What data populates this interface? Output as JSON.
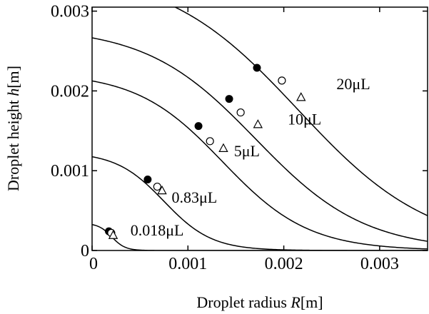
{
  "chart_data": {
    "type": "line",
    "title": "",
    "xlabel": "Droplet radius R[m]",
    "xlabel_text": "Droplet radius ",
    "xlabel_var": "R",
    "xlabel_unit": "[m]",
    "ylabel": "Droplet height h[m]",
    "ylabel_text": "Droplet height ",
    "ylabel_var": "h",
    "ylabel_unit": "[m]",
    "xlim": [
      0,
      0.0035
    ],
    "ylim": [
      0,
      0.00305
    ],
    "xticks": [
      0,
      0.001,
      0.002,
      0.003
    ],
    "xtick_labels": [
      "0",
      "0.001",
      "0.002",
      "0.003"
    ],
    "yticks": [
      0,
      0.001,
      0.002,
      0.003
    ],
    "ytick_labels": [
      "0",
      "0.001",
      "0.002",
      "0.003"
    ],
    "grid": false,
    "legend": "none",
    "curves": [
      {
        "label": "20μL",
        "h0": 0.003375,
        "x0": 0.00215,
        "s": 0.00069,
        "label_x": 0.00255,
        "label_y": 0.00202
      },
      {
        "label": "10μL",
        "h0": 0.002665,
        "x0": 0.001705,
        "s": 0.00057,
        "label_x": 0.00204,
        "label_y": 0.00158
      },
      {
        "label": "5μL",
        "h0": 0.002125,
        "x0": 0.00136,
        "s": 0.00045,
        "label_x": 0.00148,
        "label_y": 0.00118
      },
      {
        "label": "0.83μL",
        "h0": 0.001175,
        "x0": 0.00075,
        "s": 0.00025,
        "label_x": 0.00083,
        "label_y": 0.0006
      },
      {
        "label": "0.018μL",
        "h0": 0.000325,
        "x0": 0.000205,
        "s": 7e-05,
        "label_x": 0.0004,
        "label_y": 0.00019
      }
    ],
    "series": [
      {
        "marker": "filled-circle",
        "x": [
          0.00172,
          0.00143,
          0.00111,
          0.00058,
          0.000175
        ],
        "y": [
          0.00229,
          0.0019,
          0.00156,
          0.00089,
          0.00024
        ]
      },
      {
        "marker": "open-circle",
        "x": [
          0.00198,
          0.00155,
          0.00123,
          0.00068,
          0.0002
        ],
        "y": [
          0.00213,
          0.00173,
          0.00137,
          0.0008,
          0.00022
        ]
      },
      {
        "marker": "open-triangle",
        "x": [
          0.00218,
          0.00173,
          0.00137,
          0.00073,
          0.00022
        ],
        "y": [
          0.00192,
          0.00158,
          0.00128,
          0.00075,
          0.00019
        ]
      }
    ]
  }
}
